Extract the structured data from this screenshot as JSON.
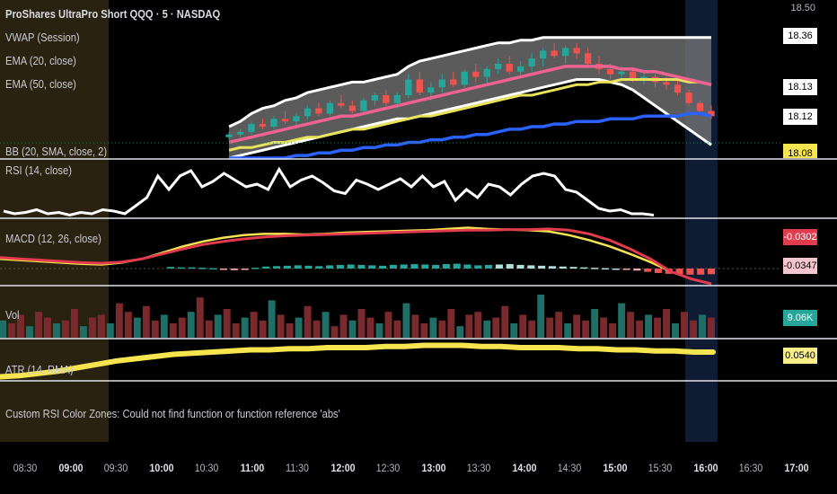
{
  "header": {
    "symbol_title": "ProShares UltraPro Short QQQ · 5 · NASDAQ",
    "indicator_labels": [
      "VWAP (Session)",
      "EMA (20, close)",
      "EMA (50, close)",
      "BB (20, SMA, close, 2)"
    ]
  },
  "panes": {
    "rsi_label": "RSI (14, close)",
    "macd_label": "MACD (12, 26, close)",
    "vol_label": "Vol",
    "atr_label": "ATR (14, RMA)"
  },
  "error_message": "Custom RSI Color Zones: Could not find function or function reference 'abs'",
  "price_axis": {
    "top_label": "18.50",
    "tags": [
      {
        "text": "18.36",
        "bg": "#ffffff",
        "fg": "#000000"
      },
      {
        "text": "18.13",
        "bg": "#ffffff",
        "fg": "#000000"
      },
      {
        "text": "18.12",
        "bg": "#ffffff",
        "fg": "#000000"
      },
      {
        "text": "18.08",
        "bg": "#f7e54f",
        "fg": "#000000"
      }
    ]
  },
  "indicator_tags": {
    "macd_line": {
      "text": "-0.0302",
      "bg": "#e23b4d",
      "fg": "#ffffff"
    },
    "macd_signal": {
      "text": "-0.0347",
      "bg": "#f6c6cc",
      "fg": "#000000"
    },
    "volume": {
      "text": "9.06K",
      "bg": "#26a69a",
      "fg": "#ffffff"
    },
    "atr": {
      "text": "0.0540",
      "bg": "#f7ee8a",
      "fg": "#000000"
    }
  },
  "time_axis": {
    "ticks": [
      {
        "label": "08:30",
        "major": false
      },
      {
        "label": "09:00",
        "major": true
      },
      {
        "label": "09:30",
        "major": false
      },
      {
        "label": "10:00",
        "major": true
      },
      {
        "label": "10:30",
        "major": false
      },
      {
        "label": "11:00",
        "major": true
      },
      {
        "label": "11:30",
        "major": false
      },
      {
        "label": "12:00",
        "major": true
      },
      {
        "label": "12:30",
        "major": false
      },
      {
        "label": "13:00",
        "major": true
      },
      {
        "label": "13:30",
        "major": false
      },
      {
        "label": "14:00",
        "major": true
      },
      {
        "label": "14:30",
        "major": false
      },
      {
        "label": "15:00",
        "major": true
      },
      {
        "label": "15:30",
        "major": false
      },
      {
        "label": "16:00",
        "major": true
      },
      {
        "label": "16:30",
        "major": false
      },
      {
        "label": "17:00",
        "major": true
      }
    ]
  },
  "colors": {
    "background": "#000000",
    "premarket_shade": "#2a2210",
    "afterhours_shade": "#0f1a33",
    "up_candle": "#26a69a",
    "down_candle": "#ef5350",
    "bb_band": "#ffffff",
    "bb_fill": "#7a7a7a",
    "ema20": "#f06292",
    "ema50": "#e8e35a",
    "vwap": "#2962ff",
    "rsi": "#ffffff",
    "macd": "#e23b4d",
    "signal": "#f7e54f",
    "atr": "#f7e54f",
    "separator": "#e0e3eb"
  },
  "chart_data": {
    "type": "line",
    "price": {
      "bars": [
        [
          18.0,
          18.02,
          17.99,
          18.01
        ],
        [
          18.01,
          18.03,
          18.0,
          18.02
        ],
        [
          18.02,
          18.06,
          18.01,
          18.05
        ],
        [
          18.05,
          18.07,
          18.03,
          18.04
        ],
        [
          18.04,
          18.08,
          18.03,
          18.07
        ],
        [
          18.07,
          18.1,
          18.05,
          18.06
        ],
        [
          18.06,
          18.09,
          18.04,
          18.08
        ],
        [
          18.08,
          18.12,
          18.07,
          18.11
        ],
        [
          18.11,
          18.13,
          18.08,
          18.09
        ],
        [
          18.09,
          18.14,
          18.08,
          18.13
        ],
        [
          18.13,
          18.16,
          18.11,
          18.12
        ],
        [
          18.12,
          18.14,
          18.09,
          18.1
        ],
        [
          18.1,
          18.15,
          18.09,
          18.14
        ],
        [
          18.14,
          18.17,
          18.12,
          18.16
        ],
        [
          18.16,
          18.18,
          18.12,
          18.13
        ],
        [
          18.13,
          18.17,
          18.11,
          18.16
        ],
        [
          18.16,
          18.24,
          18.15,
          18.22
        ],
        [
          18.22,
          18.25,
          18.16,
          18.17
        ],
        [
          18.17,
          18.21,
          18.14,
          18.19
        ],
        [
          18.19,
          18.24,
          18.17,
          18.22
        ],
        [
          18.22,
          18.25,
          18.19,
          18.2
        ],
        [
          18.2,
          18.26,
          18.19,
          18.25
        ],
        [
          18.25,
          18.28,
          18.21,
          18.23
        ],
        [
          18.23,
          18.27,
          18.2,
          18.26
        ],
        [
          18.26,
          18.3,
          18.24,
          18.28
        ],
        [
          18.28,
          18.31,
          18.24,
          18.25
        ],
        [
          18.25,
          18.29,
          18.23,
          18.27
        ],
        [
          18.27,
          18.32,
          18.25,
          18.3
        ],
        [
          18.3,
          18.34,
          18.27,
          18.33
        ],
        [
          18.33,
          18.36,
          18.3,
          18.31
        ],
        [
          18.31,
          18.35,
          18.28,
          18.34
        ],
        [
          18.34,
          18.36,
          18.3,
          18.32
        ],
        [
          18.32,
          18.34,
          18.27,
          18.28
        ],
        [
          18.28,
          18.31,
          18.24,
          18.26
        ],
        [
          18.26,
          18.28,
          18.22,
          18.24
        ],
        [
          18.24,
          18.27,
          18.22,
          18.25
        ],
        [
          18.25,
          18.26,
          18.21,
          18.22
        ],
        [
          18.22,
          18.25,
          18.2,
          18.23
        ],
        [
          18.23,
          18.24,
          18.19,
          18.21
        ],
        [
          18.21,
          18.23,
          18.18,
          18.2
        ],
        [
          18.2,
          18.22,
          18.16,
          18.17
        ],
        [
          18.17,
          18.18,
          18.12,
          18.13
        ],
        [
          18.13,
          18.14,
          18.09,
          18.1
        ],
        [
          18.1,
          18.12,
          18.07,
          18.08
        ]
      ],
      "bb_upper": [
        18.04,
        18.06,
        18.09,
        18.11,
        18.12,
        18.14,
        18.15,
        18.17,
        18.18,
        18.19,
        18.2,
        18.21,
        18.21,
        18.22,
        18.23,
        18.24,
        18.27,
        18.29,
        18.3,
        18.31,
        18.32,
        18.33,
        18.34,
        18.35,
        18.36,
        18.36,
        18.37,
        18.37,
        18.38,
        18.38,
        18.38,
        18.38,
        18.38,
        18.38,
        18.38,
        18.38,
        18.38,
        18.38,
        18.38,
        18.38,
        18.38,
        18.38,
        18.38,
        18.38
      ],
      "bb_lower": [
        17.92,
        17.93,
        17.94,
        17.95,
        17.96,
        17.97,
        17.98,
        17.99,
        18.0,
        18.01,
        18.02,
        18.03,
        18.04,
        18.05,
        18.06,
        18.07,
        18.07,
        18.08,
        18.09,
        18.1,
        18.11,
        18.12,
        18.13,
        18.14,
        18.15,
        18.16,
        18.17,
        18.18,
        18.19,
        18.2,
        18.21,
        18.22,
        18.22,
        18.22,
        18.21,
        18.2,
        18.18,
        18.15,
        18.12,
        18.09,
        18.06,
        18.03,
        18.0,
        17.97
      ],
      "ema20": [
        17.98,
        17.99,
        18.0,
        18.01,
        18.02,
        18.03,
        18.04,
        18.05,
        18.06,
        18.07,
        18.08,
        18.08,
        18.09,
        18.1,
        18.11,
        18.12,
        18.13,
        18.14,
        18.15,
        18.16,
        18.17,
        18.18,
        18.19,
        18.2,
        18.21,
        18.22,
        18.23,
        18.24,
        18.25,
        18.26,
        18.27,
        18.27,
        18.27,
        18.27,
        18.27,
        18.26,
        18.26,
        18.25,
        18.25,
        18.24,
        18.23,
        18.22,
        18.21,
        18.2
      ],
      "ema50": [
        17.95,
        17.96,
        17.96,
        17.97,
        17.98,
        17.98,
        17.99,
        18.0,
        18.0,
        18.01,
        18.02,
        18.03,
        18.03,
        18.04,
        18.05,
        18.06,
        18.07,
        18.08,
        18.08,
        18.09,
        18.1,
        18.11,
        18.12,
        18.13,
        18.14,
        18.15,
        18.16,
        18.16,
        18.17,
        18.18,
        18.19,
        18.2,
        18.2,
        18.21,
        18.21,
        18.22,
        18.22,
        18.22,
        18.22,
        18.22,
        18.22,
        18.21,
        18.21,
        18.2
      ],
      "vwap": [
        17.9,
        17.9,
        17.91,
        17.91,
        17.92,
        17.92,
        17.93,
        17.93,
        17.94,
        17.94,
        17.95,
        17.95,
        17.96,
        17.96,
        17.97,
        17.97,
        17.98,
        17.98,
        17.99,
        17.99,
        18.0,
        18.0,
        18.01,
        18.01,
        18.02,
        18.03,
        18.03,
        18.04,
        18.04,
        18.05,
        18.05,
        18.06,
        18.06,
        18.06,
        18.07,
        18.07,
        18.07,
        18.08,
        18.08,
        18.08,
        18.08,
        18.09,
        18.09,
        18.08
      ]
    },
    "rsi": [
      32,
      30,
      31,
      33,
      30,
      31,
      29,
      31,
      30,
      33,
      32,
      30,
      36,
      42,
      58,
      48,
      58,
      62,
      50,
      54,
      60,
      55,
      50,
      52,
      48,
      63,
      50,
      55,
      58,
      53,
      47,
      45,
      55,
      52,
      48,
      52,
      56,
      50,
      58,
      50,
      54,
      40,
      48,
      42,
      52,
      50,
      44,
      52,
      58,
      60,
      58,
      48,
      46,
      40,
      34,
      32,
      33,
      30,
      30,
      29
    ],
    "macd": [
      0.012,
      0.01,
      0.008,
      0.006,
      0.004,
      0.003,
      0.005,
      0.01,
      0.018,
      0.026,
      0.033,
      0.038,
      0.042,
      0.045,
      0.047,
      0.048,
      0.049,
      0.05,
      0.051,
      0.052,
      0.053,
      0.054,
      0.055,
      0.056,
      0.056,
      0.057,
      0.057,
      0.058,
      0.056,
      0.05,
      0.04,
      0.026,
      0.01,
      -0.01,
      -0.022,
      -0.03
    ],
    "signal": [
      0.01,
      0.008,
      0.006,
      0.004,
      0.002,
      0.001,
      0.004,
      0.01,
      0.02,
      0.03,
      0.038,
      0.044,
      0.048,
      0.05,
      0.05,
      0.049,
      0.05,
      0.052,
      0.053,
      0.054,
      0.055,
      0.056,
      0.058,
      0.06,
      0.058,
      0.057,
      0.056,
      0.054,
      0.048,
      0.04,
      0.03,
      0.018,
      0.005,
      -0.01,
      -0.022,
      -0.035
    ],
    "macd_hist": [
      0.004,
      0.003,
      0.003,
      0.002,
      0.001,
      -0.002,
      -0.004,
      -0.003,
      0.002,
      0.005,
      0.006,
      0.007,
      0.008,
      0.007,
      0.006,
      0.008,
      0.009,
      0.01,
      0.009,
      0.008,
      0.007,
      0.009,
      0.01,
      0.011,
      0.01,
      0.009,
      0.011,
      0.012,
      0.01,
      0.008,
      0.009,
      0.01,
      0.011,
      0.009,
      0.008,
      0.007,
      0.006,
      0.005,
      0.004,
      0.003,
      0.002,
      0.001,
      0.0,
      -0.002,
      -0.005,
      -0.008,
      -0.011,
      -0.013,
      -0.014,
      -0.015,
      -0.015,
      -0.014
    ],
    "volume": [
      6,
      5,
      8,
      4,
      9,
      7,
      5,
      6,
      10,
      4,
      7,
      8,
      5,
      12,
      9,
      7,
      11,
      6,
      8,
      5,
      7,
      9,
      14,
      6,
      8,
      10,
      5,
      7,
      9,
      6,
      13,
      8,
      5,
      7,
      11,
      6,
      9,
      4,
      8,
      6,
      10,
      7,
      5,
      9,
      6,
      12,
      8,
      5,
      7,
      6,
      10,
      4,
      8,
      9,
      6,
      7,
      11,
      5,
      8,
      6,
      15,
      7,
      9,
      5,
      8,
      6,
      10,
      7,
      5,
      12,
      9,
      6,
      8,
      7,
      10,
      5,
      9,
      6,
      8,
      7
    ],
    "atr": [
      0.032,
      0.033,
      0.035,
      0.037,
      0.04,
      0.043,
      0.046,
      0.048,
      0.05,
      0.052,
      0.053,
      0.054,
      0.055,
      0.056,
      0.056,
      0.057,
      0.057,
      0.058,
      0.058,
      0.058,
      0.059,
      0.059,
      0.06,
      0.06,
      0.06,
      0.059,
      0.059,
      0.058,
      0.058,
      0.058,
      0.057,
      0.057,
      0.056,
      0.056,
      0.055,
      0.055,
      0.054,
      0.054
    ]
  }
}
